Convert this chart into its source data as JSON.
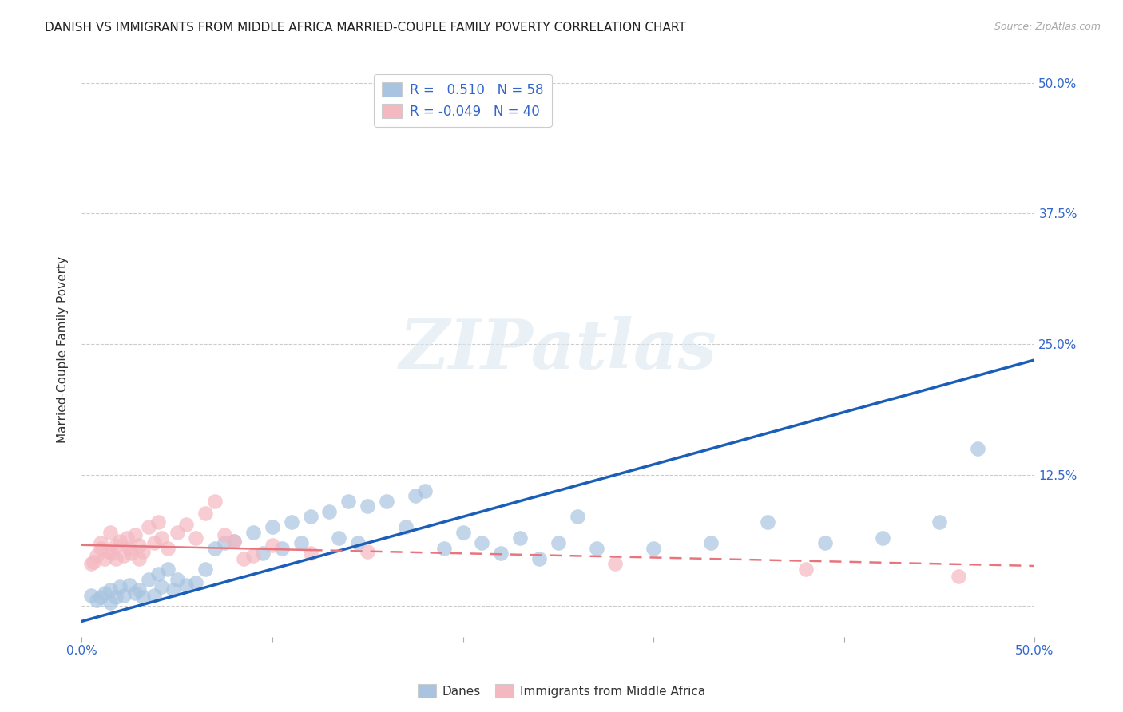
{
  "title": "DANISH VS IMMIGRANTS FROM MIDDLE AFRICA MARRIED-COUPLE FAMILY POVERTY CORRELATION CHART",
  "source": "Source: ZipAtlas.com",
  "ylabel": "Married-Couple Family Poverty",
  "xlim": [
    0.0,
    0.5
  ],
  "ylim": [
    -0.03,
    0.52
  ],
  "watermark": "ZIPatlas",
  "blue_R": 0.51,
  "blue_N": 58,
  "pink_R": -0.049,
  "pink_N": 40,
  "blue_color": "#a8c4e0",
  "pink_color": "#f4b8c1",
  "blue_line_color": "#1a5eb8",
  "pink_line_color": "#e8747c",
  "legend_blue_label": "Danes",
  "legend_pink_label": "Immigrants from Middle Africa",
  "blue_scatter_x": [
    0.005,
    0.008,
    0.01,
    0.012,
    0.015,
    0.015,
    0.018,
    0.02,
    0.022,
    0.025,
    0.028,
    0.03,
    0.032,
    0.035,
    0.038,
    0.04,
    0.042,
    0.045,
    0.048,
    0.05,
    0.055,
    0.06,
    0.065,
    0.07,
    0.075,
    0.08,
    0.09,
    0.095,
    0.1,
    0.105,
    0.11,
    0.115,
    0.12,
    0.13,
    0.135,
    0.14,
    0.145,
    0.15,
    0.16,
    0.17,
    0.175,
    0.18,
    0.19,
    0.2,
    0.21,
    0.22,
    0.23,
    0.24,
    0.25,
    0.26,
    0.27,
    0.3,
    0.33,
    0.36,
    0.39,
    0.42,
    0.45,
    0.47
  ],
  "blue_scatter_y": [
    0.01,
    0.005,
    0.008,
    0.012,
    0.015,
    0.003,
    0.008,
    0.018,
    0.01,
    0.02,
    0.012,
    0.015,
    0.008,
    0.025,
    0.01,
    0.03,
    0.018,
    0.035,
    0.015,
    0.025,
    0.02,
    0.022,
    0.035,
    0.055,
    0.06,
    0.062,
    0.07,
    0.05,
    0.075,
    0.055,
    0.08,
    0.06,
    0.085,
    0.09,
    0.065,
    0.1,
    0.06,
    0.095,
    0.1,
    0.075,
    0.105,
    0.11,
    0.055,
    0.07,
    0.06,
    0.05,
    0.065,
    0.045,
    0.06,
    0.085,
    0.055,
    0.055,
    0.06,
    0.08,
    0.06,
    0.065,
    0.08,
    0.15
  ],
  "pink_scatter_x": [
    0.005,
    0.006,
    0.008,
    0.01,
    0.01,
    0.012,
    0.014,
    0.015,
    0.016,
    0.018,
    0.018,
    0.02,
    0.022,
    0.024,
    0.025,
    0.026,
    0.028,
    0.03,
    0.03,
    0.032,
    0.035,
    0.038,
    0.04,
    0.042,
    0.045,
    0.05,
    0.055,
    0.06,
    0.065,
    0.07,
    0.075,
    0.08,
    0.085,
    0.09,
    0.1,
    0.12,
    0.15,
    0.28,
    0.38,
    0.46
  ],
  "pink_scatter_y": [
    0.04,
    0.042,
    0.048,
    0.055,
    0.06,
    0.045,
    0.052,
    0.07,
    0.05,
    0.058,
    0.045,
    0.062,
    0.048,
    0.065,
    0.055,
    0.05,
    0.068,
    0.058,
    0.045,
    0.052,
    0.075,
    0.06,
    0.08,
    0.065,
    0.055,
    0.07,
    0.078,
    0.065,
    0.088,
    0.1,
    0.068,
    0.062,
    0.045,
    0.048,
    0.058,
    0.05,
    0.052,
    0.04,
    0.035,
    0.028
  ],
  "grid_color": "#cccccc",
  "background_color": "#ffffff",
  "title_fontsize": 11,
  "tick_label_color": "#3366cc",
  "ylabel_color": "#333333",
  "blue_line_x0": 0.0,
  "blue_line_y0": -0.015,
  "blue_line_x1": 0.5,
  "blue_line_y1": 0.235,
  "pink_line_x0": 0.0,
  "pink_line_y0": 0.058,
  "pink_line_x1": 0.5,
  "pink_line_y1": 0.038
}
